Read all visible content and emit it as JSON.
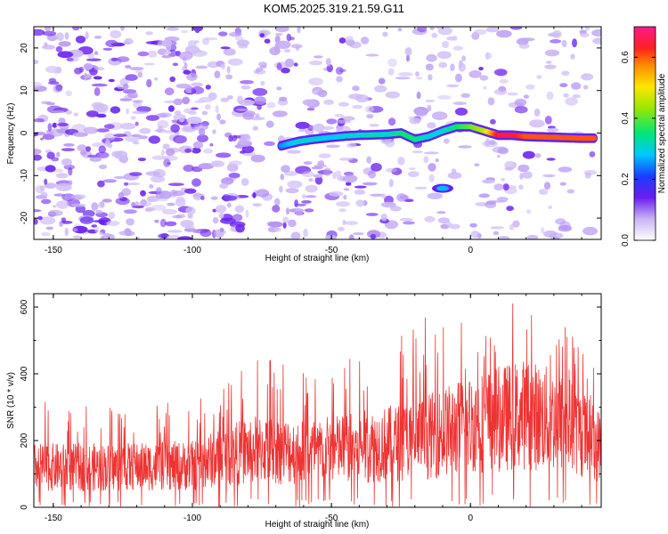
{
  "title": "KOM5.2025.319.21.59.G11",
  "chart_data": [
    {
      "type": "heatmap",
      "xlabel": "Height of straight line (km)",
      "ylabel": "Frequency (Hz)",
      "xlim": [
        -157,
        47
      ],
      "ylim": [
        -25,
        25
      ],
      "xticks": [
        -150,
        -100,
        -50,
        0
      ],
      "yticks": [
        -20,
        -10,
        0,
        10,
        20
      ],
      "trace": {
        "description_values": "dominant spectral ridge (height km, frequency Hz, normalized amplitude)",
        "points": [
          [
            -68,
            -3,
            0.25
          ],
          [
            -62,
            -2,
            0.3
          ],
          [
            -57,
            -1.5,
            0.3
          ],
          [
            -50,
            -1,
            0.28
          ],
          [
            -45,
            -0.7,
            0.3
          ],
          [
            -40,
            -0.5,
            0.3
          ],
          [
            -34,
            -0.4,
            0.32
          ],
          [
            -30,
            -0.3,
            0.3
          ],
          [
            -25,
            0,
            0.35
          ],
          [
            -20,
            -1.5,
            0.35
          ],
          [
            -15,
            -0.8,
            0.3
          ],
          [
            -10,
            0.5,
            0.3
          ],
          [
            -5,
            1.5,
            0.35
          ],
          [
            0,
            1.5,
            0.4
          ],
          [
            5,
            0.5,
            0.45
          ],
          [
            10,
            -0.5,
            0.65
          ],
          [
            15,
            -0.5,
            0.65
          ],
          [
            20,
            -0.8,
            0.6
          ],
          [
            30,
            -1,
            0.6
          ],
          [
            40,
            -1.2,
            0.6
          ],
          [
            45,
            -1.2,
            0.6
          ]
        ],
        "secondary_blob": [
          -10,
          -13
        ]
      },
      "colorbar": {
        "label": "Normalized spectral amplitude",
        "range": [
          0,
          0.7
        ],
        "ticks": [
          "0.0",
          "0.2",
          "0.4",
          "0.6"
        ]
      }
    },
    {
      "type": "line",
      "xlabel": "Height of straight line (km)",
      "ylabel": "SNR (10 * v/v)",
      "xlim": [
        -157,
        47
      ],
      "ylim": [
        0,
        640
      ],
      "xticks": [
        -150,
        -100,
        -50,
        0
      ],
      "yticks": [
        0,
        200,
        400,
        600
      ],
      "series": [
        {
          "name": "SNR",
          "color": "#ee3333",
          "envelope_x": [
            -157,
            -130,
            -100,
            -80,
            -75,
            -60,
            -40,
            -20,
            0,
            20,
            35,
            47
          ],
          "envelope_mean": [
            120,
            120,
            125,
            170,
            175,
            165,
            180,
            200,
            250,
            280,
            250,
            180
          ],
          "envelope_peak": [
            320,
            300,
            320,
            440,
            460,
            420,
            460,
            580,
            560,
            640,
            560,
            420
          ]
        }
      ]
    }
  ]
}
